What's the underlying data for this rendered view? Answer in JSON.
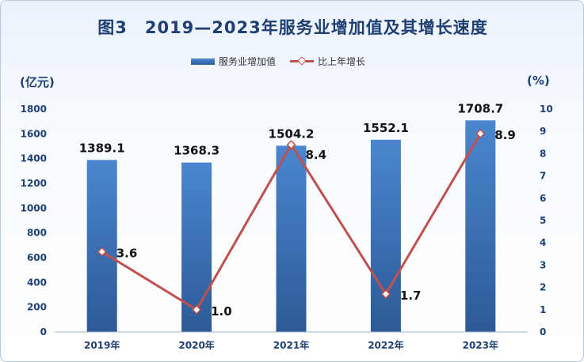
{
  "title": "图3　2019—2023年服务业增加值及其增长速度",
  "units": {
    "left": "(亿元)",
    "right": "(%)"
  },
  "colors": {
    "bar": "#3b75bd",
    "line": "#c0504d",
    "axis_text": "#1f3f73"
  },
  "chart_data": {
    "type": "bar",
    "title": "图3　2019—2023年服务业增加值及其增长速度",
    "categories": [
      "2019年",
      "2020年",
      "2021年",
      "2022年",
      "2023年"
    ],
    "series": [
      {
        "name": "服务业增加值",
        "type": "bar",
        "axis": "left",
        "values": [
          1389.1,
          1368.3,
          1504.2,
          1552.1,
          1708.7
        ],
        "labels": [
          "1389.1",
          "1368.3",
          "1504.2",
          "1552.1",
          "1708.7"
        ]
      },
      {
        "name": "比上年增长",
        "type": "line",
        "axis": "right",
        "values": [
          3.6,
          1.0,
          8.4,
          1.7,
          8.9
        ],
        "labels": [
          "3.6",
          "1.0",
          "8.4",
          "1.7",
          "8.9"
        ]
      }
    ],
    "y_left": {
      "label": "(亿元)",
      "min": 0,
      "max": 1800,
      "step": 200,
      "ticks": [
        "0",
        "200",
        "400",
        "600",
        "800",
        "1000",
        "1200",
        "1400",
        "1600",
        "1800"
      ]
    },
    "y_right": {
      "label": "(%)",
      "min": 0,
      "max": 10,
      "step": 1,
      "ticks": [
        "0",
        "1",
        "2",
        "3",
        "4",
        "5",
        "6",
        "7",
        "8",
        "9",
        "10"
      ]
    },
    "grid": false,
    "legend_position": "top-center"
  }
}
